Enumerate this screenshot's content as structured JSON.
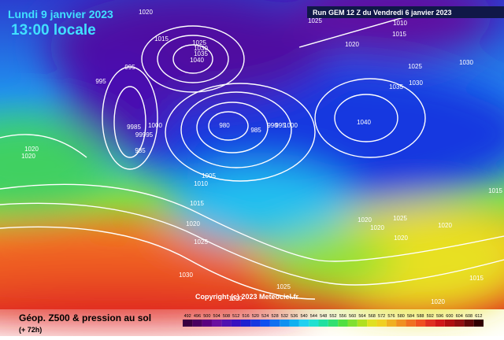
{
  "header": {
    "date": "Lundi 9 janvier 2023",
    "time": "13:00 locale",
    "run": "Run GEM 12 Z du Vendredi 6 janvier 2023"
  },
  "footer": {
    "title": "Géop. Z500 & pression au sol",
    "lead": "(+ 72h)",
    "copyright": "Copyright (c) 2023 Meteociel.fr"
  },
  "isobar_labels": [
    "1020",
    "1015",
    "1025",
    "1030",
    "1035",
    "1040",
    "995",
    "995",
    "1000",
    "985",
    "9985",
    "99995",
    "980",
    "985",
    "990",
    "995",
    "1000",
    "1020",
    "1020",
    "1005",
    "1010",
    "1015",
    "1020",
    "1025",
    "1030",
    "1025",
    "1020",
    "1040",
    "1035",
    "1030",
    "1025",
    "1020",
    "1015",
    "1010",
    "1025",
    "1030",
    "1020",
    "1025",
    "1020",
    "1020",
    "1020",
    "1015",
    "1020",
    "1015"
  ],
  "legend": [
    {
      "label": 492,
      "color": "#3a0040"
    },
    {
      "label": 496,
      "color": "#4a0060"
    },
    {
      "label": 500,
      "color": "#5a0080"
    },
    {
      "label": 504,
      "color": "#6a10a0"
    },
    {
      "label": 508,
      "color": "#5010b0"
    },
    {
      "label": 512,
      "color": "#3a10c0"
    },
    {
      "label": 516,
      "color": "#2020d0"
    },
    {
      "label": 520,
      "color": "#1838e0"
    },
    {
      "label": 524,
      "color": "#1050f0"
    },
    {
      "label": 528,
      "color": "#1070f0"
    },
    {
      "label": 532,
      "color": "#1090f0"
    },
    {
      "label": 536,
      "color": "#10b0f0"
    },
    {
      "label": 540,
      "color": "#20d0f0"
    },
    {
      "label": 544,
      "color": "#20e0d0"
    },
    {
      "label": 548,
      "color": "#20e0a0"
    },
    {
      "label": 552,
      "color": "#30e070"
    },
    {
      "label": 556,
      "color": "#50e040"
    },
    {
      "label": 560,
      "color": "#80e030"
    },
    {
      "label": 564,
      "color": "#b0e020"
    },
    {
      "label": 568,
      "color": "#e0e020"
    },
    {
      "label": 572,
      "color": "#f0d020"
    },
    {
      "label": 576,
      "color": "#f0b020"
    },
    {
      "label": 580,
      "color": "#f09020"
    },
    {
      "label": 584,
      "color": "#f07020"
    },
    {
      "label": 588,
      "color": "#f05020"
    },
    {
      "label": 592,
      "color": "#e03020"
    },
    {
      "label": 596,
      "color": "#d01818"
    },
    {
      "label": 600,
      "color": "#b01010"
    },
    {
      "label": 604,
      "color": "#901010"
    },
    {
      "label": 608,
      "color": "#600808"
    },
    {
      "label": 612,
      "color": "#300000"
    }
  ]
}
